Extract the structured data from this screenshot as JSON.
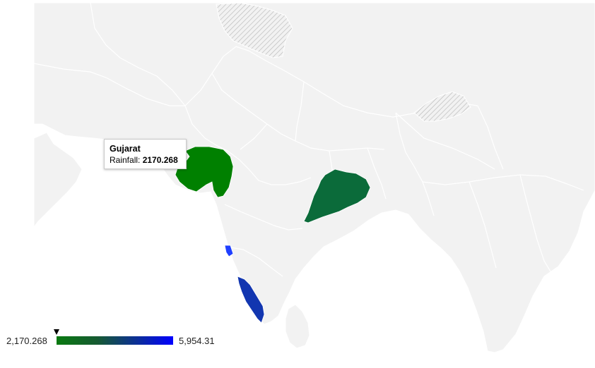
{
  "map": {
    "region": "South Asia / India",
    "colors": {
      "land": "#f2f2f2",
      "border": "#ffffff",
      "water": "#ffffff",
      "disputed_hatch": "#bdbdbd",
      "gujarat": "#008000",
      "odisha": "#0b6b3a",
      "goa": "#1f3fff",
      "kerala": "#1236b0"
    },
    "highlighted_regions": [
      {
        "name": "Gujarat",
        "value": 2170.268
      },
      {
        "name": "Odisha"
      },
      {
        "name": "Goa"
      },
      {
        "name": "Kerala"
      }
    ]
  },
  "tooltip": {
    "title": "Gujarat",
    "label": "Rainfall:",
    "value": "2170.268"
  },
  "legend": {
    "min_label": "2,170.268",
    "max_label": "5,954.31",
    "min_color": "#0a7a10",
    "max_color": "#0000ff"
  }
}
